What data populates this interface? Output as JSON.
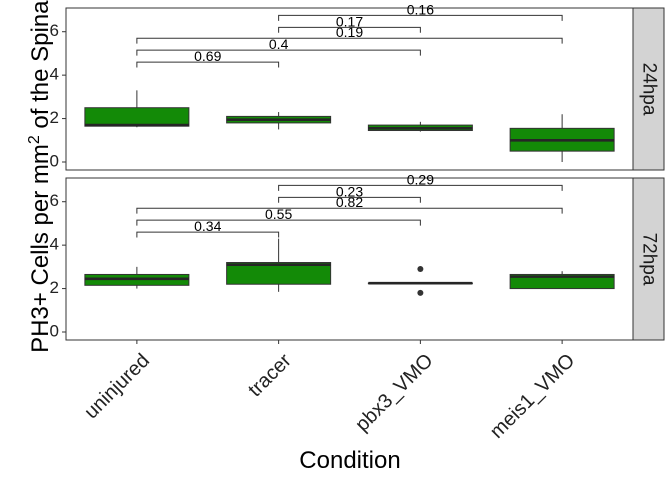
{
  "chart_data": {
    "type": "boxplot",
    "xlabel": "Condition",
    "ylabel_prefix": "PH3+ Cells per mm",
    "ylabel_superscript": "2",
    "ylabel_suffix": " of the Spinal",
    "categories": [
      "uninjured",
      "tracer",
      "pbx3_VMO",
      "meis1_VMO"
    ],
    "ylim": [
      0,
      7
    ],
    "yticks": [
      0,
      2,
      4,
      6
    ],
    "ytick_labels": [
      "0",
      "2",
      "4",
      "6"
    ],
    "box_fill": "#138a07",
    "panel_strip_fill": "#d3d3d3",
    "grid": false,
    "panels": [
      {
        "label": "24hpa",
        "boxes": [
          {
            "category": "uninjured",
            "min": 1.6,
            "q1": 1.65,
            "median": 1.7,
            "q3": 2.5,
            "max": 3.3,
            "outliers": []
          },
          {
            "category": "tracer",
            "min": 1.5,
            "q1": 1.8,
            "median": 1.95,
            "q3": 2.1,
            "max": 2.3,
            "outliers": []
          },
          {
            "category": "pbx3_VMO",
            "min": 1.4,
            "q1": 1.45,
            "median": 1.55,
            "q3": 1.7,
            "max": 1.85,
            "outliers": []
          },
          {
            "category": "meis1_VMO",
            "min": 0.0,
            "q1": 0.5,
            "median": 1.0,
            "q3": 1.55,
            "max": 2.2,
            "outliers": []
          }
        ],
        "comparisons": [
          {
            "from": "uninjured",
            "to": "tracer",
            "level": 4.6,
            "label": "0.69"
          },
          {
            "from": "uninjured",
            "to": "pbx3_VMO",
            "level": 5.15,
            "label": "0.4"
          },
          {
            "from": "uninjured",
            "to": "meis1_VMO",
            "level": 5.7,
            "label": "0.19"
          },
          {
            "from": "tracer",
            "to": "pbx3_VMO",
            "level": 6.2,
            "label": "0.17"
          },
          {
            "from": "tracer",
            "to": "meis1_VMO",
            "level": 6.75,
            "label": "0.16"
          }
        ]
      },
      {
        "label": "72hpa",
        "boxes": [
          {
            "category": "uninjured",
            "min": 2.0,
            "q1": 2.15,
            "median": 2.45,
            "q3": 2.65,
            "max": 3.0,
            "outliers": []
          },
          {
            "category": "tracer",
            "min": 1.85,
            "q1": 2.2,
            "median": 3.1,
            "q3": 3.2,
            "max": 4.3,
            "outliers": []
          },
          {
            "category": "pbx3_VMO",
            "min": 2.25,
            "q1": 2.25,
            "median": 2.25,
            "q3": 2.25,
            "max": 2.25,
            "outliers": [
              2.9,
              1.8
            ]
          },
          {
            "category": "meis1_VMO",
            "min": 2.0,
            "q1": 2.0,
            "median": 2.55,
            "q3": 2.65,
            "max": 2.8,
            "outliers": []
          }
        ],
        "comparisons": [
          {
            "from": "uninjured",
            "to": "tracer",
            "level": 4.6,
            "label": "0.34"
          },
          {
            "from": "uninjured",
            "to": "pbx3_VMO",
            "level": 5.15,
            "label": "0.55"
          },
          {
            "from": "uninjured",
            "to": "meis1_VMO",
            "level": 5.7,
            "label": "0.82"
          },
          {
            "from": "tracer",
            "to": "pbx3_VMO",
            "level": 6.2,
            "label": "0.23"
          },
          {
            "from": "tracer",
            "to": "meis1_VMO",
            "level": 6.75,
            "label": "0.29"
          }
        ]
      }
    ]
  }
}
